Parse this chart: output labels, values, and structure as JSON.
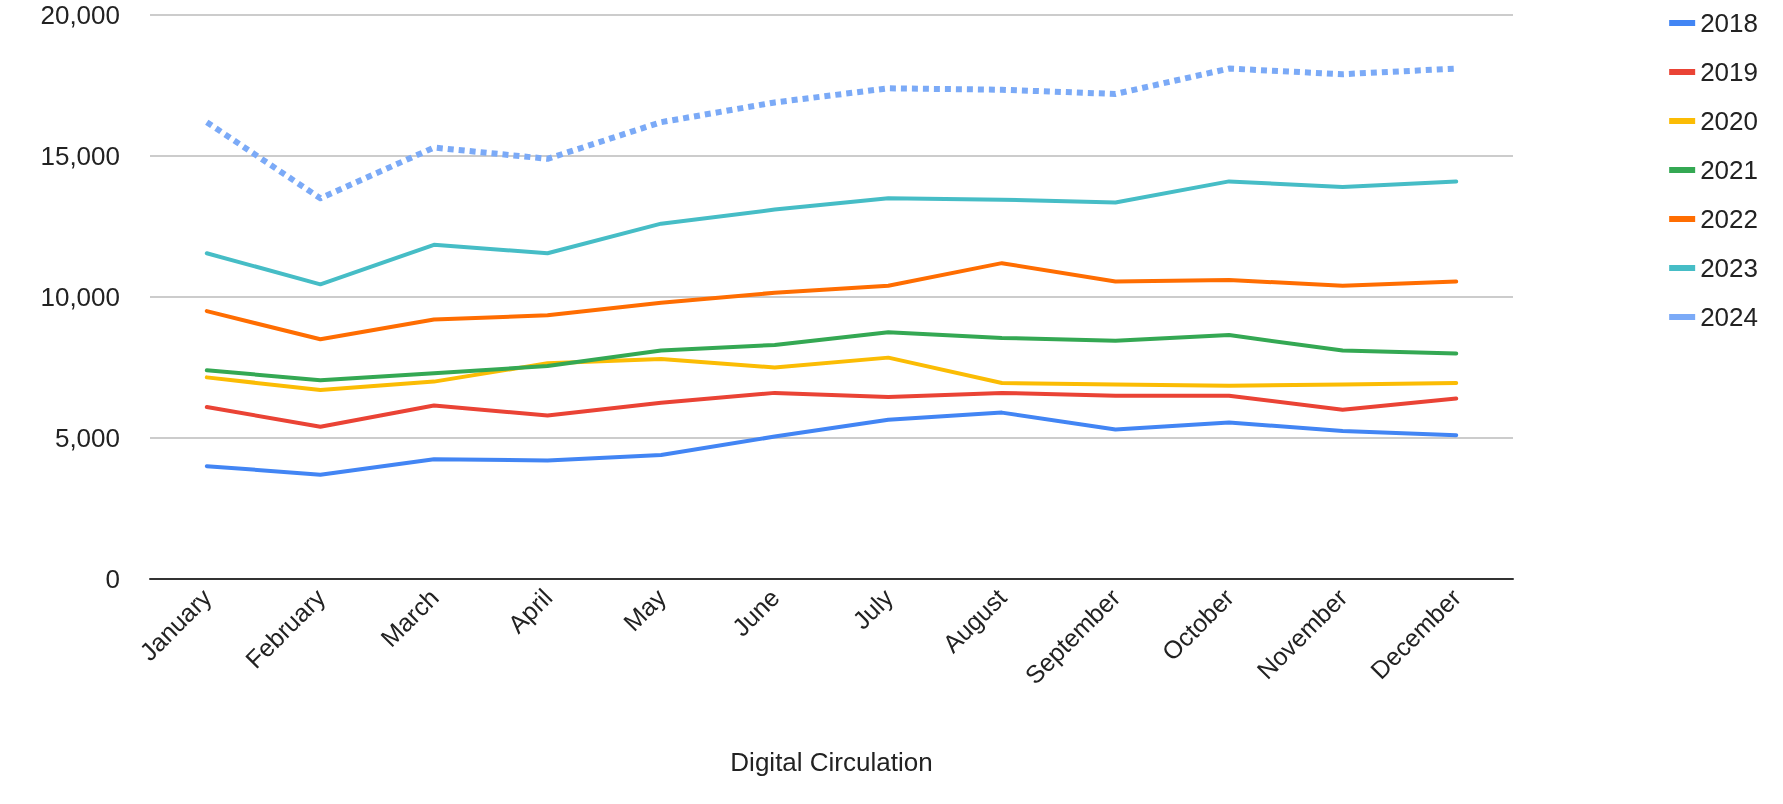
{
  "chart_data": {
    "type": "line",
    "xlabel": "Digital Circulation",
    "categories": [
      "January",
      "February",
      "March",
      "April",
      "May",
      "June",
      "July",
      "August",
      "September",
      "October",
      "November",
      "December"
    ],
    "series": [
      {
        "name": "2018",
        "color": "#4285f4",
        "values": [
          4000,
          3700,
          4250,
          4200,
          4400,
          5050,
          5650,
          5900,
          5300,
          5550,
          5250,
          5100
        ]
      },
      {
        "name": "2019",
        "color": "#ea4335",
        "values": [
          6100,
          5400,
          6150,
          5800,
          6250,
          6600,
          6450,
          6600,
          6500,
          6500,
          6000,
          6400
        ]
      },
      {
        "name": "2020",
        "color": "#fbbc04",
        "values": [
          7150,
          6700,
          7000,
          7650,
          7800,
          7500,
          7850,
          6950,
          6900,
          6850,
          6900,
          6950
        ]
      },
      {
        "name": "2021",
        "color": "#34a853",
        "values": [
          7400,
          7050,
          7300,
          7550,
          8100,
          8300,
          8750,
          8550,
          8450,
          8650,
          8100,
          8000
        ]
      },
      {
        "name": "2022",
        "color": "#ff6d01",
        "values": [
          9500,
          8500,
          9200,
          9350,
          9800,
          10150,
          10400,
          11200,
          10550,
          10600,
          10400,
          10550
        ]
      },
      {
        "name": "2023",
        "color": "#46bdc6",
        "values": [
          11550,
          10450,
          11850,
          11550,
          12600,
          13100,
          13500,
          13450,
          13350,
          14100,
          13900,
          14100
        ]
      },
      {
        "name": "2024",
        "color": "#7baaf7",
        "line_style": "dotted",
        "values": [
          16200,
          13500,
          15300,
          14900,
          16200,
          16900,
          17400,
          17350,
          17200,
          18100,
          17900,
          18100
        ]
      }
    ],
    "ylim": [
      0,
      20000
    ],
    "yticks": [
      0,
      {
        "value": 5000,
        "label": "5,000"
      },
      {
        "value": 10000,
        "label": "10,000"
      },
      {
        "value": 15000,
        "label": "15,000"
      },
      {
        "value": 20000,
        "label": "20,000"
      }
    ],
    "grid": "y",
    "legend": "right",
    "marker": "none",
    "line_style": "solid"
  }
}
